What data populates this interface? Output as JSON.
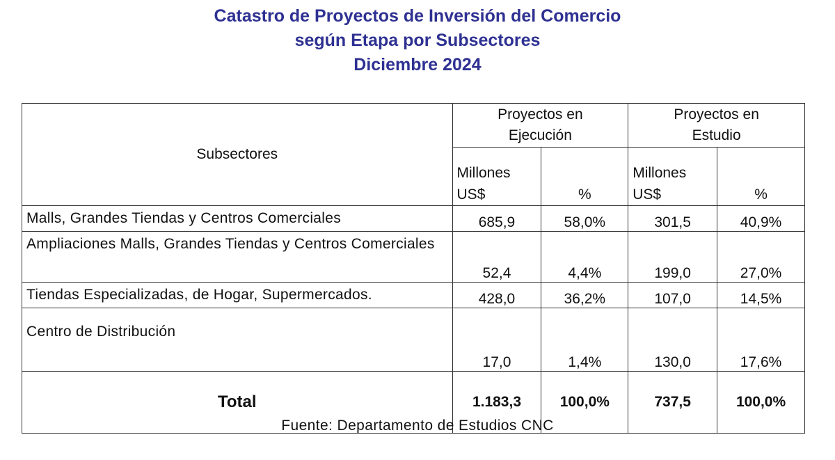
{
  "title": {
    "line1": "Catastro de Proyectos de Inversión del Comercio",
    "line2": "según Etapa por Subsectores",
    "line3": "Diciembre 2024"
  },
  "table": {
    "subsector_header": "Subsectores",
    "group_ejecucion": {
      "line1": "Proyectos en",
      "line2": "Ejecución"
    },
    "group_estudio": {
      "line1": "Proyectos en",
      "line2": "Estudio"
    },
    "col_millones": {
      "line1": "Millones",
      "line2": "US$"
    },
    "col_pct": "%",
    "rows": [
      {
        "name": "Malls, Grandes Tiendas y Centros Comerciales",
        "ejec_mill": "685,9",
        "ejec_pct": "58,0%",
        "est_mill": "301,5",
        "est_pct": "40,9%"
      },
      {
        "name": "Ampliaciones Malls, Grandes Tiendas y Centros Comerciales",
        "ejec_mill": "52,4",
        "ejec_pct": "4,4%",
        "est_mill": "199,0",
        "est_pct": "27,0%"
      },
      {
        "name": "Tiendas Especializadas, de Hogar, Supermercados.",
        "ejec_mill": "428,0",
        "ejec_pct": "36,2%",
        "est_mill": "107,0",
        "est_pct": "14,5%"
      },
      {
        "name": "Centro de Distribución",
        "ejec_mill": "17,0",
        "ejec_pct": "1,4%",
        "est_mill": "130,0",
        "est_pct": "17,6%"
      }
    ],
    "total": {
      "label": "Total",
      "ejec_mill": "1.183,3",
      "ejec_pct": "100,0%",
      "est_mill": "737,5",
      "est_pct": "100,0%"
    }
  },
  "source": "Fuente:  Departamento  de Estudios  CNC",
  "colors": {
    "title": "#2e3192",
    "border": "#333333"
  }
}
